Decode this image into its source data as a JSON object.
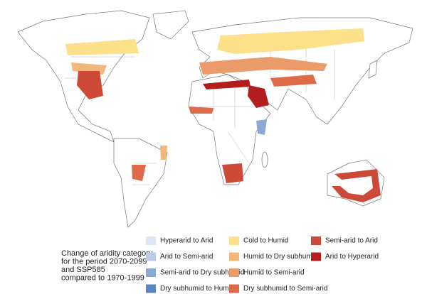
{
  "legend": {
    "title": [
      "Change of aridity category",
      "for the period 2070-2099",
      "and SSP585",
      "compared to 1970-1999"
    ],
    "items": [
      {
        "label": "Hyperarid to Arid",
        "color": "#dce6f5"
      },
      {
        "label": "Arid to Semi-arid",
        "color": "#b9cbe6"
      },
      {
        "label": "Semi-arid to Dry subhumid",
        "color": "#8ea9d6"
      },
      {
        "label": "Dry subhumid to Humid",
        "color": "#5e86c4"
      },
      {
        "label": "Cold to Humid",
        "color": "#fde08a"
      },
      {
        "label": "Humid to Dry subhumid",
        "color": "#f2b77a"
      },
      {
        "label": "Humid to Semi-arid",
        "color": "#eb9a6a"
      },
      {
        "label": "Dry subhumid to Semi-arid",
        "color": "#dd6b4a"
      },
      {
        "label": "Semi-arid to Arid",
        "color": "#cc4a37"
      },
      {
        "label": "Arid to Hyperarid",
        "color": "#b31d1d"
      }
    ]
  }
}
